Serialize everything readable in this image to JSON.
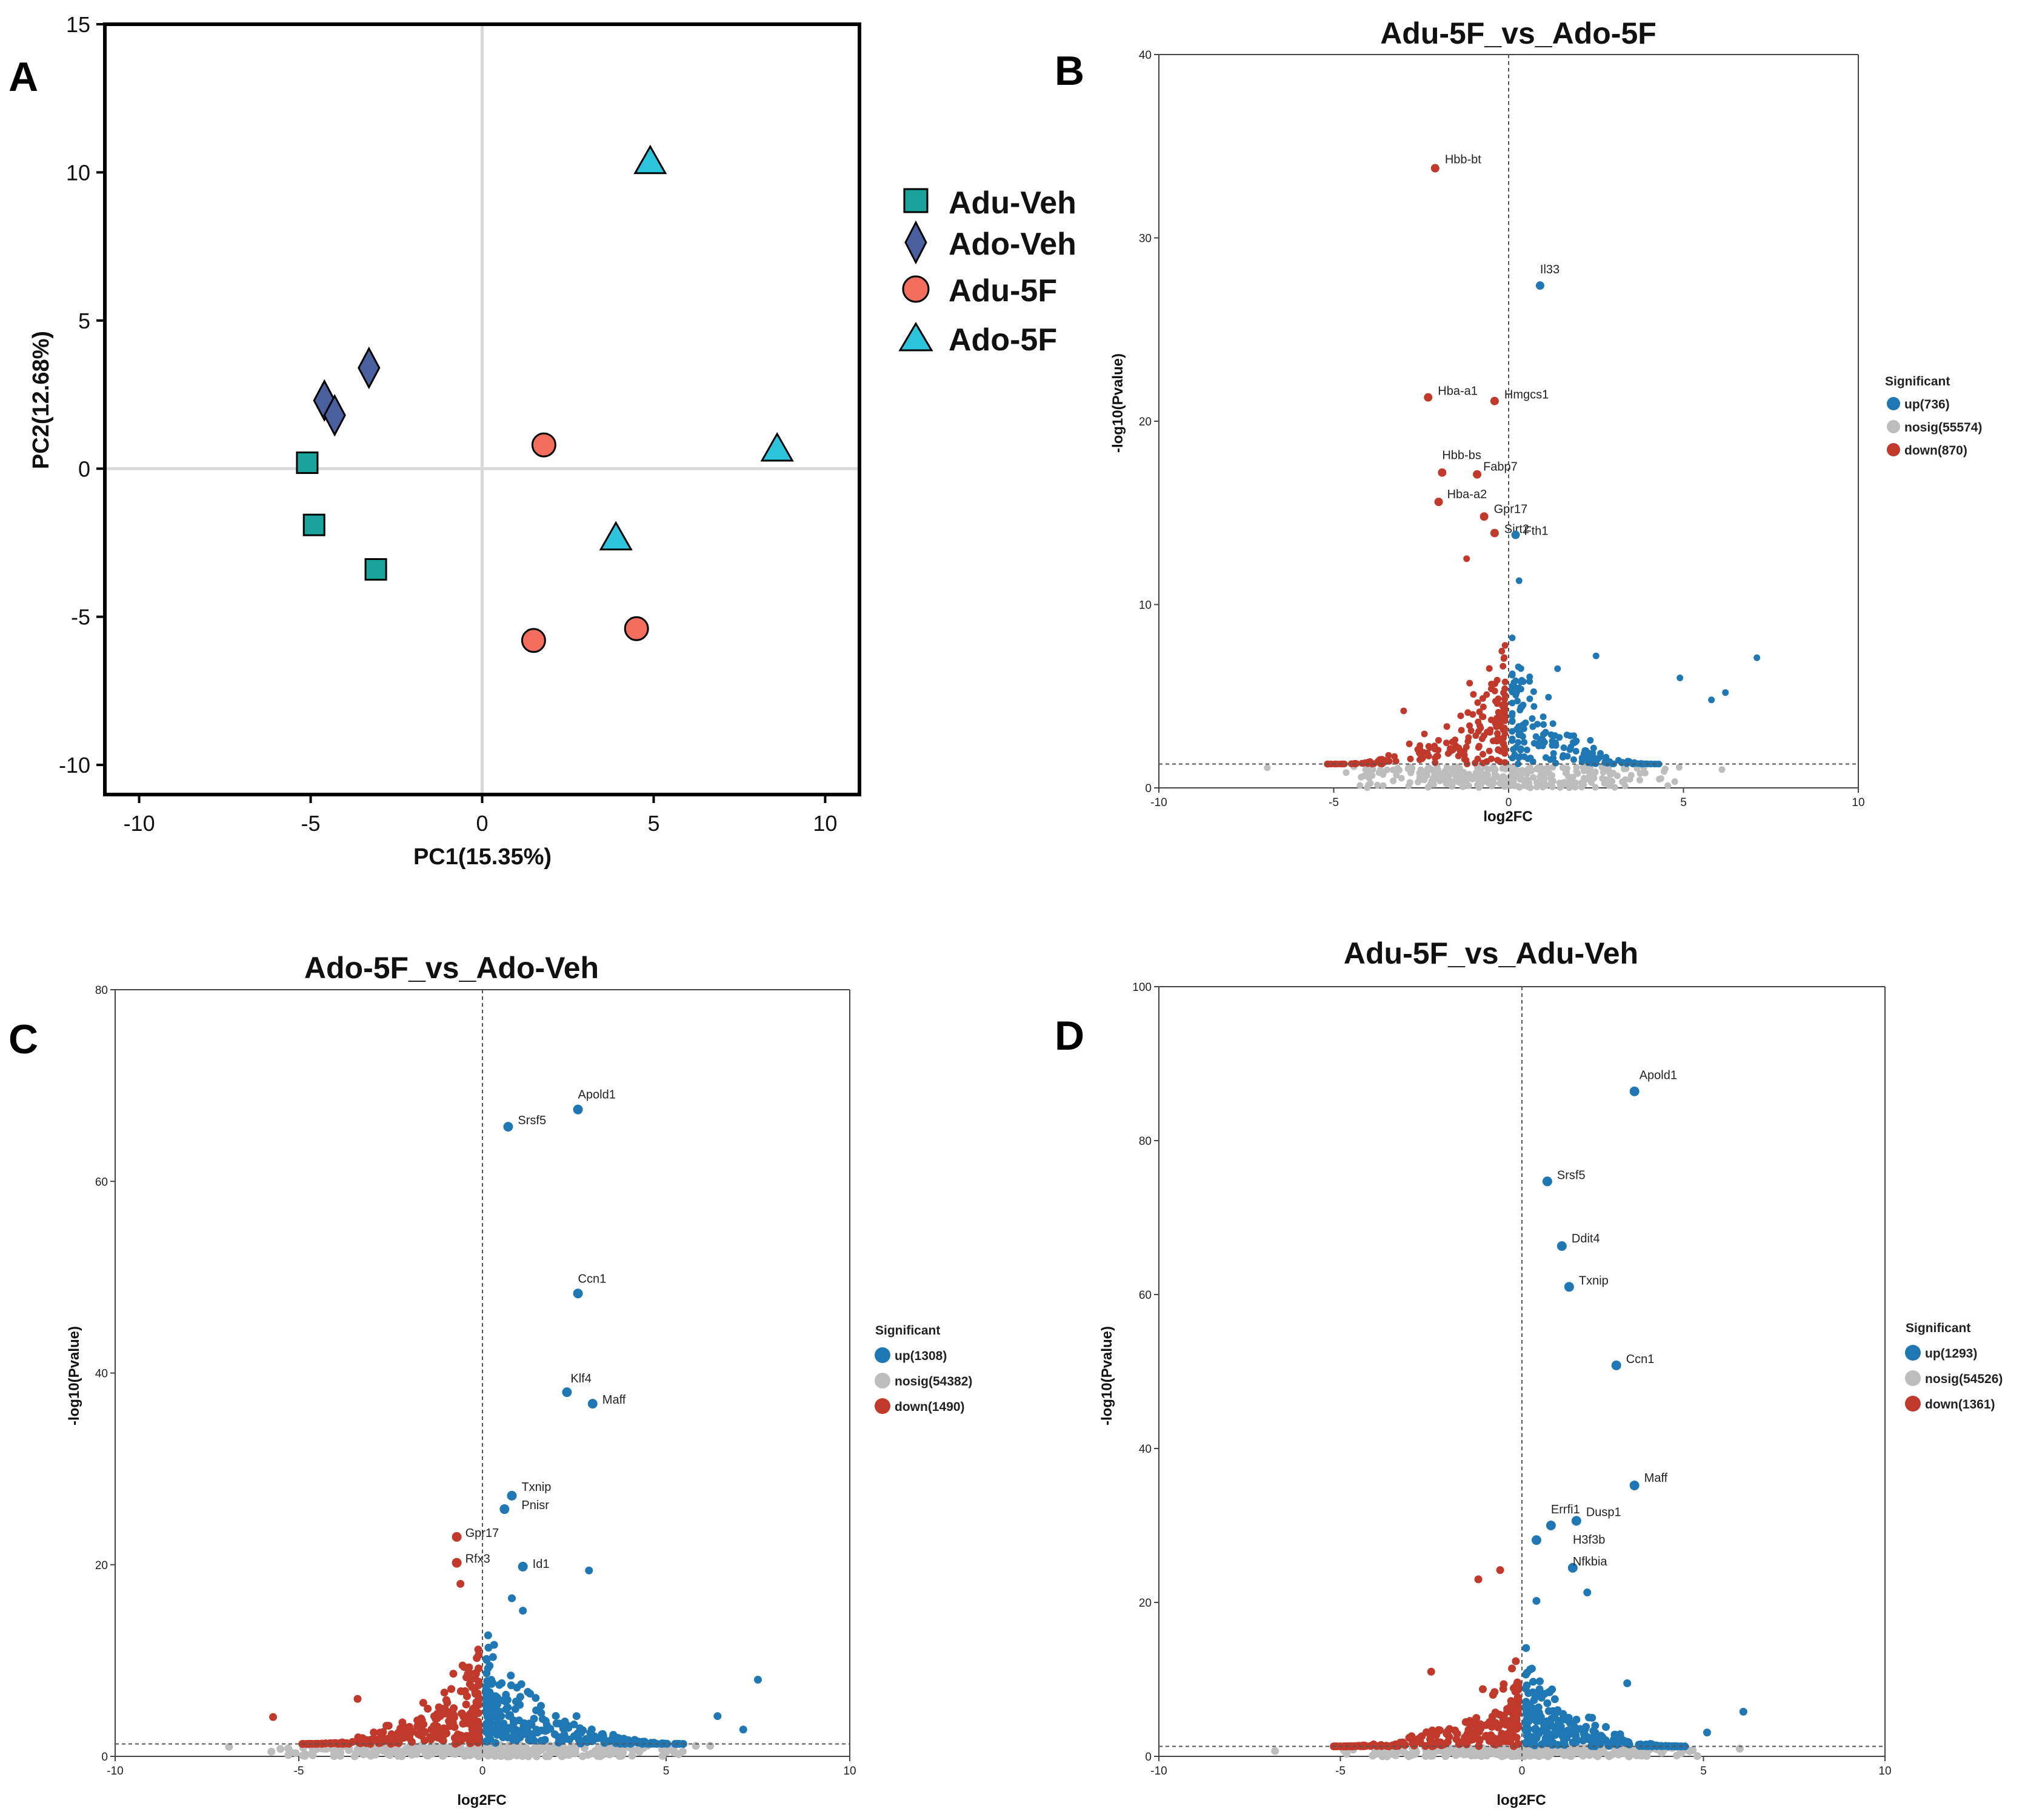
{
  "colors": {
    "up": "#1f78b4",
    "down": "#c0392b",
    "nosig": "#bdbdbd",
    "adu_veh": "#1aa39a",
    "ado_veh": "#4a5f9e",
    "adu_5f": "#f26d5b",
    "ado_5f": "#2bc4dc"
  },
  "chart_data": [
    {
      "panel": "A",
      "type": "scatter",
      "title": "",
      "xlabel": "PC1(15.35%)",
      "ylabel": "PC2(12.68%)",
      "xlim": [
        -11,
        11
      ],
      "ylim": [
        -11,
        15
      ],
      "xticks": [
        -10,
        -5,
        0,
        5,
        10
      ],
      "yticks": [
        -10,
        -5,
        0,
        5,
        10,
        15
      ],
      "legend_position": "right",
      "series": [
        {
          "name": "Adu-Veh",
          "marker": "square",
          "color": "#1aa39a",
          "points": [
            [
              -5.1,
              0.2
            ],
            [
              -4.9,
              -1.9
            ],
            [
              -3.1,
              -3.4
            ]
          ]
        },
        {
          "name": "Ado-Veh",
          "marker": "diamond",
          "color": "#4a5f9e",
          "points": [
            [
              -4.6,
              2.3
            ],
            [
              -4.3,
              1.8
            ],
            [
              -3.3,
              3.4
            ]
          ]
        },
        {
          "name": "Adu-5F",
          "marker": "circle",
          "color": "#f26d5b",
          "points": [
            [
              1.8,
              0.8
            ],
            [
              1.5,
              -5.8
            ],
            [
              4.5,
              -5.4
            ]
          ]
        },
        {
          "name": "Ado-5F",
          "marker": "triangle",
          "color": "#2bc4dc",
          "points": [
            [
              4.9,
              10.3
            ],
            [
              8.6,
              0.6
            ],
            [
              3.9,
              -2.4
            ]
          ]
        }
      ]
    },
    {
      "panel": "B",
      "type": "scatter",
      "title": "Adu-5F_vs_Ado-5F",
      "xlabel": "log2FC",
      "ylabel": "-log10(Pvalue)",
      "xlim": [
        -10,
        10
      ],
      "ylim": [
        0,
        40
      ],
      "xticks": [
        -10,
        -5,
        0,
        5,
        10
      ],
      "yticks": [
        0,
        10,
        20,
        30,
        40
      ],
      "threshold": 1.3,
      "legend_position": "right",
      "legend_title": "Significant",
      "legend": [
        "up(736)",
        "nosig(55574)",
        "down(870)"
      ],
      "cloud": {
        "up_count": 170,
        "down_count": 200,
        "nosig_count": 320,
        "seed": 11,
        "down_x": [
          -5.2,
          -0.1
        ],
        "up_x": [
          0.1,
          4.3
        ],
        "spread": 7,
        "core": 0.8
      },
      "extra_points": [
        {
          "x": 4.9,
          "y": 6.0,
          "sig": "up"
        },
        {
          "x": 5.8,
          "y": 4.8,
          "sig": "up"
        },
        {
          "x": 6.2,
          "y": 5.2,
          "sig": "up"
        },
        {
          "x": 7.1,
          "y": 7.1,
          "sig": "up"
        },
        {
          "x": 2.5,
          "y": 7.2,
          "sig": "up"
        },
        {
          "x": 1.4,
          "y": 6.5,
          "sig": "up"
        },
        {
          "x": 0.3,
          "y": 11.3,
          "sig": "up"
        },
        {
          "x": -1.2,
          "y": 12.5,
          "sig": "down"
        },
        {
          "x": -3.0,
          "y": 4.2,
          "sig": "down"
        },
        {
          "x": -6.9,
          "y": 1.1,
          "sig": "nosig"
        },
        {
          "x": 6.1,
          "y": 1.0,
          "sig": "nosig"
        }
      ],
      "genes": [
        {
          "label": "Hbb-bt",
          "x": -2.1,
          "y": 33.8,
          "sig": "down"
        },
        {
          "label": "Il33",
          "x": 0.9,
          "y": 27.4,
          "sig": "up"
        },
        {
          "label": "Hba-a1",
          "x": -2.3,
          "y": 21.3,
          "sig": "down"
        },
        {
          "label": "Hmgcs1",
          "x": -0.4,
          "y": 21.1,
          "sig": "down"
        },
        {
          "label": "Hbb-bs",
          "x": -1.9,
          "y": 17.2,
          "sig": "down"
        },
        {
          "label": "Fabp7",
          "x": -0.9,
          "y": 17.1,
          "sig": "down"
        },
        {
          "label": "Hba-a2",
          "x": -2.0,
          "y": 15.6,
          "sig": "down"
        },
        {
          "label": "Gpr17",
          "x": -0.7,
          "y": 14.8,
          "sig": "down"
        },
        {
          "label": "Sirt2",
          "x": -0.4,
          "y": 13.9,
          "sig": "down"
        },
        {
          "label": "Fth1",
          "x": 0.2,
          "y": 13.8,
          "sig": "up"
        }
      ]
    },
    {
      "panel": "C",
      "type": "scatter",
      "title": "Ado-5F_vs_Ado-Veh",
      "xlabel": "log2FC",
      "ylabel": "-log10(Pvalue)",
      "xlim": [
        -10,
        10
      ],
      "ylim": [
        0,
        80
      ],
      "xticks": [
        -10,
        -5,
        0,
        5,
        10
      ],
      "yticks": [
        0,
        20,
        40,
        60,
        80
      ],
      "threshold": 1.3,
      "legend_position": "right",
      "legend_title": "Significant",
      "legend": [
        "up(1308)",
        "nosig(54382)",
        "down(1490)"
      ],
      "cloud": {
        "up_count": 260,
        "down_count": 230,
        "nosig_count": 320,
        "seed": 23,
        "down_x": [
          -5.0,
          -0.1
        ],
        "up_x": [
          0.1,
          5.5
        ],
        "spread": 10,
        "core": 0.9
      },
      "extra_points": [
        {
          "x": 7.5,
          "y": 8.0,
          "sig": "up"
        },
        {
          "x": 7.1,
          "y": 2.8,
          "sig": "up"
        },
        {
          "x": 6.4,
          "y": 4.2,
          "sig": "up"
        },
        {
          "x": 2.9,
          "y": 19.4,
          "sig": "up"
        },
        {
          "x": 0.8,
          "y": 16.5,
          "sig": "up"
        },
        {
          "x": 1.1,
          "y": 15.2,
          "sig": "up"
        },
        {
          "x": -5.7,
          "y": 4.1,
          "sig": "down"
        },
        {
          "x": -3.4,
          "y": 6.0,
          "sig": "down"
        },
        {
          "x": -0.6,
          "y": 18.0,
          "sig": "down"
        },
        {
          "x": -6.9,
          "y": 1.0,
          "sig": "nosig"
        },
        {
          "x": 6.2,
          "y": 1.1,
          "sig": "nosig"
        }
      ],
      "genes": [
        {
          "label": "Apold1",
          "x": 2.6,
          "y": 67.5,
          "sig": "up"
        },
        {
          "label": "Srsf5",
          "x": 0.7,
          "y": 65.7,
          "sig": "up"
        },
        {
          "label": "Ccn1",
          "x": 2.6,
          "y": 48.3,
          "sig": "up"
        },
        {
          "label": "Klf4",
          "x": 2.3,
          "y": 38.0,
          "sig": "up"
        },
        {
          "label": "Maff",
          "x": 3.0,
          "y": 36.8,
          "sig": "up"
        },
        {
          "label": "Txnip",
          "x": 0.8,
          "y": 27.2,
          "sig": "up"
        },
        {
          "label": "Pnisr",
          "x": 0.6,
          "y": 25.8,
          "sig": "up"
        },
        {
          "label": "Gpr17",
          "x": -0.7,
          "y": 22.9,
          "sig": "down"
        },
        {
          "label": "Rfx3",
          "x": -0.7,
          "y": 20.2,
          "sig": "down"
        },
        {
          "label": "Id1",
          "x": 1.1,
          "y": 19.8,
          "sig": "up"
        }
      ]
    },
    {
      "panel": "D",
      "type": "scatter",
      "title": "Adu-5F_vs_Adu-Veh",
      "xlabel": "log2FC",
      "ylabel": "-log10(Pvalue)",
      "xlim": [
        -10,
        10
      ],
      "ylim": [
        0,
        100
      ],
      "xticks": [
        -10,
        -5,
        0,
        5,
        10
      ],
      "yticks": [
        0,
        20,
        40,
        60,
        80,
        100
      ],
      "threshold": 1.3,
      "legend_position": "right",
      "legend_title": "Significant",
      "legend": [
        "up(1293)",
        "nosig(54526)",
        "down(1361)"
      ],
      "cloud": {
        "up_count": 250,
        "down_count": 200,
        "nosig_count": 320,
        "seed": 37,
        "down_x": [
          -5.2,
          -0.1
        ],
        "up_x": [
          0.1,
          4.5
        ],
        "spread": 12,
        "core": 0.85
      },
      "extra_points": [
        {
          "x": 6.1,
          "y": 5.8,
          "sig": "up"
        },
        {
          "x": 5.1,
          "y": 3.1,
          "sig": "up"
        },
        {
          "x": 2.9,
          "y": 9.5,
          "sig": "up"
        },
        {
          "x": 1.8,
          "y": 21.3,
          "sig": "up"
        },
        {
          "x": 0.4,
          "y": 20.2,
          "sig": "up"
        },
        {
          "x": -1.2,
          "y": 23.0,
          "sig": "down"
        },
        {
          "x": -0.6,
          "y": 24.2,
          "sig": "down"
        },
        {
          "x": -2.5,
          "y": 11.0,
          "sig": "down"
        },
        {
          "x": -6.8,
          "y": 0.7,
          "sig": "nosig"
        },
        {
          "x": 6.0,
          "y": 1.0,
          "sig": "nosig"
        }
      ],
      "genes": [
        {
          "label": "Apold1",
          "x": 3.1,
          "y": 86.4,
          "sig": "up"
        },
        {
          "label": "Srsf5",
          "x": 0.7,
          "y": 74.7,
          "sig": "up"
        },
        {
          "label": "Ddit4",
          "x": 1.1,
          "y": 66.3,
          "sig": "up"
        },
        {
          "label": "Txnip",
          "x": 1.3,
          "y": 61.0,
          "sig": "up"
        },
        {
          "label": "Ccn1",
          "x": 2.6,
          "y": 50.8,
          "sig": "up"
        },
        {
          "label": "Maff",
          "x": 3.1,
          "y": 35.2,
          "sig": "up"
        },
        {
          "label": "Errfi1",
          "x": 0.8,
          "y": 30.0,
          "sig": "up"
        },
        {
          "label": "Dusp1",
          "x": 1.5,
          "y": 30.6,
          "sig": "up"
        },
        {
          "label": "H3f3b",
          "x": 0.4,
          "y": 28.1,
          "sig": "up"
        },
        {
          "label": "Nfkbia",
          "x": 1.4,
          "y": 24.5,
          "sig": "up"
        }
      ]
    }
  ]
}
